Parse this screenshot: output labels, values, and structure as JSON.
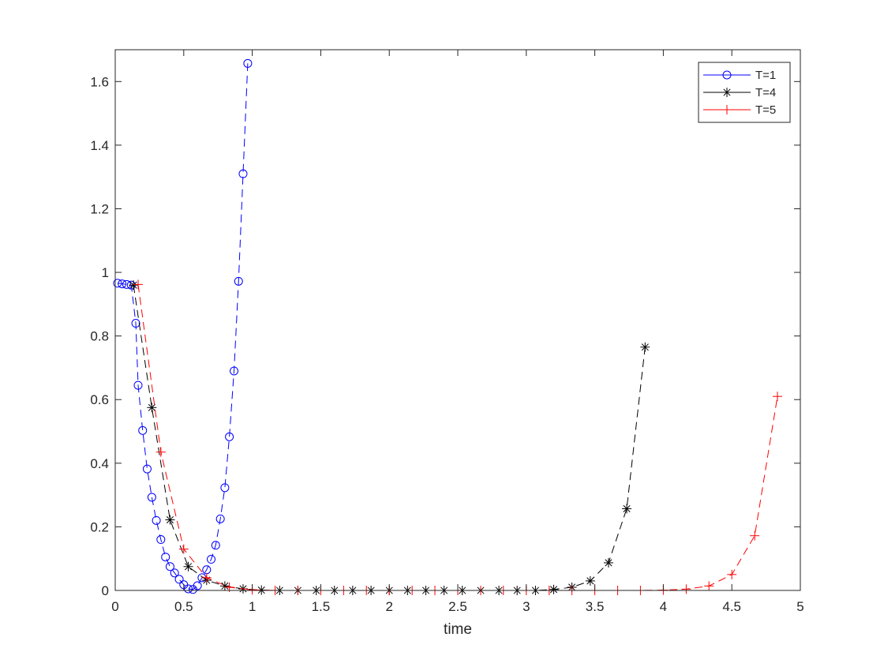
{
  "chart_data": {
    "type": "line",
    "title": "",
    "xlabel": "time",
    "ylabel": "",
    "xlim": [
      0,
      5
    ],
    "ylim": [
      0,
      1.7
    ],
    "xticks": [
      0,
      0.5,
      1,
      1.5,
      2,
      2.5,
      3,
      3.5,
      4,
      4.5,
      5
    ],
    "xtick_labels": [
      "0",
      "0.5",
      "1",
      "1.5",
      "2",
      "2.5",
      "3",
      "3.5",
      "4",
      "4.5",
      "5"
    ],
    "yticks": [
      0,
      0.2,
      0.4,
      0.6,
      0.8,
      1,
      1.2,
      1.4,
      1.6
    ],
    "ytick_labels": [
      "0",
      "0.2",
      "0.4",
      "0.6",
      "0.8",
      "1",
      "1.2",
      "1.4",
      "1.6"
    ],
    "grid": false,
    "legend_position": "top-right",
    "series": [
      {
        "name": "T=1",
        "color": "#0000ff",
        "marker": "circle",
        "line_style": "dashed",
        "x": [
          0.017,
          0.05,
          0.083,
          0.117,
          0.15,
          0.167,
          0.2,
          0.233,
          0.267,
          0.3,
          0.333,
          0.367,
          0.4,
          0.433,
          0.467,
          0.5,
          0.533,
          0.567,
          0.6,
          0.633,
          0.667,
          0.7,
          0.733,
          0.767,
          0.8,
          0.833,
          0.867,
          0.9,
          0.933,
          0.967
        ],
        "y": [
          0.966,
          0.964,
          0.962,
          0.96,
          0.84,
          0.645,
          0.503,
          0.382,
          0.293,
          0.22,
          0.16,
          0.105,
          0.075,
          0.055,
          0.035,
          0.018,
          0.005,
          0.003,
          0.015,
          0.04,
          0.065,
          0.098,
          0.142,
          0.225,
          0.323,
          0.483,
          0.69,
          0.972,
          1.31,
          1.657
        ]
      },
      {
        "name": "T=4",
        "color": "#000000",
        "marker": "asterisk",
        "line_style": "dashed",
        "x": [
          0.133,
          0.267,
          0.4,
          0.533,
          0.667,
          0.8,
          0.933,
          1.067,
          1.2,
          1.333,
          1.467,
          1.6,
          1.733,
          1.867,
          2.0,
          2.133,
          2.267,
          2.4,
          2.533,
          2.667,
          2.8,
          2.933,
          3.067,
          3.2,
          3.333,
          3.467,
          3.6,
          3.733,
          3.867
        ],
        "y": [
          0.96,
          0.575,
          0.222,
          0.075,
          0.032,
          0.014,
          0.005,
          0.001,
          0,
          0,
          0,
          0,
          0,
          0,
          0,
          0,
          0,
          0,
          0,
          0,
          0,
          0,
          0,
          0.003,
          0.01,
          0.03,
          0.087,
          0.257,
          0.765
        ]
      },
      {
        "name": "T=5",
        "color": "#ff0000",
        "marker": "plus",
        "line_style": "dashed",
        "x": [
          0.167,
          0.333,
          0.5,
          0.667,
          0.833,
          1.0,
          1.167,
          1.333,
          1.5,
          1.667,
          1.833,
          2.0,
          2.167,
          2.333,
          2.5,
          2.667,
          2.833,
          3.0,
          3.167,
          3.333,
          3.5,
          3.667,
          3.833,
          4.0,
          4.167,
          4.333,
          4.5,
          4.667,
          4.833
        ],
        "y": [
          0.962,
          0.435,
          0.13,
          0.04,
          0.01,
          0.002,
          0,
          0,
          0,
          0,
          0,
          0,
          0,
          0,
          0,
          0,
          0,
          0,
          0,
          0,
          0,
          0,
          0,
          0.001,
          0.004,
          0.014,
          0.05,
          0.172,
          0.61
        ]
      }
    ]
  }
}
